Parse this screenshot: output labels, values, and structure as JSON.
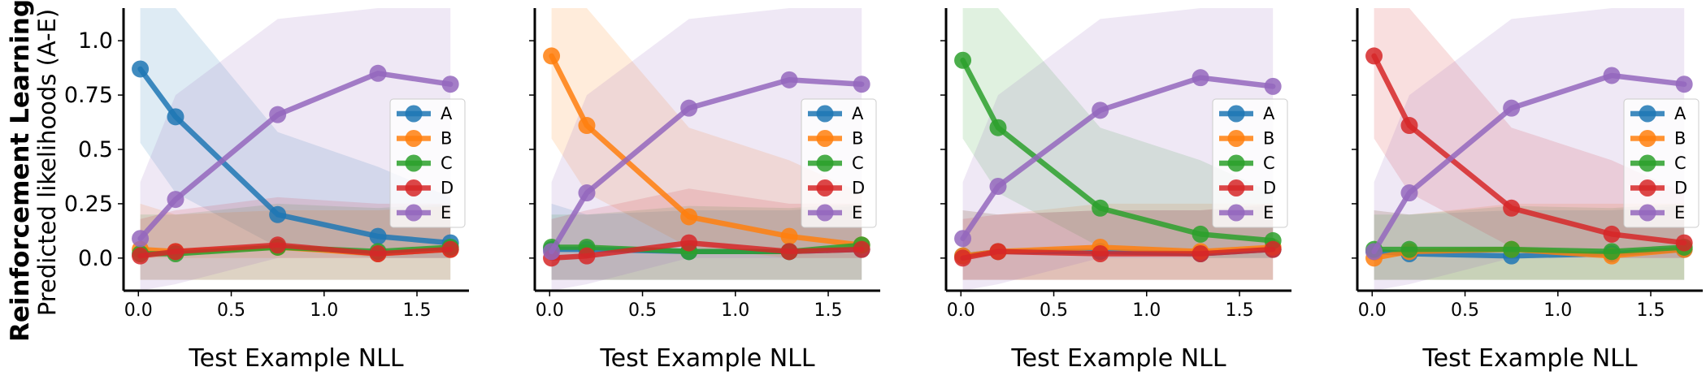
{
  "figure": {
    "row_label": "Reinforcement Learning",
    "ylabel": "Predicted likelihoods (A-E)"
  },
  "colors": {
    "A": "#1f77b4",
    "B": "#ff7f0e",
    "C": "#2ca02c",
    "D": "#d62728",
    "E": "#9467bd"
  },
  "chart_data": [
    {
      "type": "line",
      "xlabel": "Test Example NLL",
      "ylabel": "Predicted likelihoods (A-E)",
      "xlim": [
        -0.08,
        1.78
      ],
      "ylim": [
        -0.15,
        1.15
      ],
      "xticks": [
        "0.0",
        "0.5",
        "1.0",
        "1.5"
      ],
      "yticks": [
        "0.0",
        "0.25",
        "0.5",
        "0.75",
        "1.0"
      ],
      "legend": [
        "A",
        "B",
        "C",
        "D",
        "E"
      ],
      "legend_position": "center-right",
      "x": [
        0.01,
        0.2,
        0.75,
        1.29,
        1.68
      ],
      "series": [
        {
          "name": "A",
          "values": [
            0.87,
            0.65,
            0.2,
            0.1,
            0.07
          ],
          "band_low": [
            0.53,
            0.3,
            0.05,
            0.0,
            0.0
          ],
          "band_high": [
            1.15,
            1.15,
            0.58,
            0.42,
            0.28
          ]
        },
        {
          "name": "B",
          "values": [
            0.04,
            0.03,
            0.05,
            0.02,
            0.04
          ],
          "band_low": [
            0.0,
            0.0,
            0.0,
            0.0,
            0.0
          ],
          "band_high": [
            0.25,
            0.2,
            0.22,
            0.22,
            0.24
          ]
        },
        {
          "name": "C",
          "values": [
            0.02,
            0.02,
            0.05,
            0.03,
            0.05
          ],
          "band_low": [
            -0.1,
            -0.1,
            -0.1,
            -0.1,
            -0.1
          ],
          "band_high": [
            0.2,
            0.2,
            0.25,
            0.23,
            0.25
          ]
        },
        {
          "name": "D",
          "values": [
            0.01,
            0.03,
            0.06,
            0.02,
            0.04
          ],
          "band_low": [
            -0.1,
            -0.1,
            -0.1,
            -0.1,
            -0.1
          ],
          "band_high": [
            0.18,
            0.22,
            0.28,
            0.25,
            0.25
          ]
        },
        {
          "name": "E",
          "values": [
            0.09,
            0.27,
            0.66,
            0.85,
            0.8
          ],
          "band_low": [
            -0.15,
            -0.12,
            0.0,
            0.0,
            0.0
          ],
          "band_high": [
            0.35,
            0.75,
            1.1,
            1.15,
            1.15
          ]
        }
      ]
    },
    {
      "type": "line",
      "xlabel": "Test Example NLL",
      "xlim": [
        -0.08,
        1.78
      ],
      "ylim": [
        -0.15,
        1.15
      ],
      "xticks": [
        "0.0",
        "0.5",
        "1.0",
        "1.5"
      ],
      "yticks": [],
      "legend": [
        "A",
        "B",
        "C",
        "D",
        "E"
      ],
      "legend_position": "center-right",
      "x": [
        0.01,
        0.2,
        0.75,
        1.29,
        1.68
      ],
      "series": [
        {
          "name": "A",
          "values": [
            0.04,
            0.04,
            0.03,
            0.03,
            0.04
          ],
          "band_low": [
            -0.1,
            -0.1,
            -0.1,
            -0.1,
            -0.1
          ],
          "band_high": [
            0.25,
            0.2,
            0.22,
            0.22,
            0.24
          ]
        },
        {
          "name": "B",
          "values": [
            0.93,
            0.61,
            0.19,
            0.1,
            0.06
          ],
          "band_low": [
            0.55,
            0.3,
            0.05,
            0.0,
            0.0
          ],
          "band_high": [
            1.15,
            1.15,
            0.6,
            0.45,
            0.3
          ]
        },
        {
          "name": "C",
          "values": [
            0.05,
            0.05,
            0.03,
            0.03,
            0.06
          ],
          "band_low": [
            -0.1,
            -0.1,
            -0.1,
            -0.1,
            -0.1
          ],
          "band_high": [
            0.2,
            0.2,
            0.24,
            0.23,
            0.25
          ]
        },
        {
          "name": "D",
          "values": [
            0.0,
            0.01,
            0.07,
            0.03,
            0.04
          ],
          "band_low": [
            -0.1,
            -0.1,
            -0.1,
            -0.1,
            -0.1
          ],
          "band_high": [
            0.18,
            0.22,
            0.32,
            0.25,
            0.25
          ]
        },
        {
          "name": "E",
          "values": [
            0.03,
            0.3,
            0.69,
            0.82,
            0.8
          ],
          "band_low": [
            -0.15,
            -0.12,
            0.0,
            0.0,
            0.0
          ],
          "band_high": [
            0.35,
            0.75,
            1.1,
            1.15,
            1.15
          ]
        }
      ]
    },
    {
      "type": "line",
      "xlabel": "Test Example NLL",
      "xlim": [
        -0.08,
        1.78
      ],
      "ylim": [
        -0.15,
        1.15
      ],
      "xticks": [
        "0.0",
        "0.5",
        "1.0",
        "1.5"
      ],
      "yticks": [],
      "legend": [
        "A",
        "B",
        "C",
        "D",
        "E"
      ],
      "legend_position": "center-right",
      "x": [
        0.01,
        0.2,
        0.75,
        1.29,
        1.68
      ],
      "series": [
        {
          "name": "A",
          "values": [
            0.01,
            0.03,
            0.03,
            0.02,
            0.04
          ],
          "band_low": [
            -0.1,
            -0.1,
            -0.1,
            -0.1,
            -0.1
          ],
          "band_high": [
            0.22,
            0.2,
            0.22,
            0.22,
            0.24
          ]
        },
        {
          "name": "B",
          "values": [
            0.01,
            0.03,
            0.05,
            0.03,
            0.05
          ],
          "band_low": [
            -0.1,
            -0.1,
            -0.1,
            -0.1,
            -0.1
          ],
          "band_high": [
            0.22,
            0.2,
            0.25,
            0.25,
            0.25
          ]
        },
        {
          "name": "C",
          "values": [
            0.91,
            0.6,
            0.23,
            0.11,
            0.08
          ],
          "band_low": [
            0.55,
            0.3,
            0.05,
            0.0,
            0.0
          ],
          "band_high": [
            1.15,
            1.15,
            0.6,
            0.45,
            0.3
          ]
        },
        {
          "name": "D",
          "values": [
            0.0,
            0.03,
            0.02,
            0.02,
            0.04
          ],
          "band_low": [
            -0.1,
            -0.1,
            -0.1,
            -0.1,
            -0.1
          ],
          "band_high": [
            0.18,
            0.2,
            0.22,
            0.22,
            0.25
          ]
        },
        {
          "name": "E",
          "values": [
            0.09,
            0.33,
            0.68,
            0.83,
            0.79
          ],
          "band_low": [
            -0.15,
            -0.12,
            0.0,
            0.0,
            0.0
          ],
          "band_high": [
            0.35,
            0.75,
            1.1,
            1.15,
            1.15
          ]
        }
      ]
    },
    {
      "type": "line",
      "xlabel": "Test Example NLL",
      "xlim": [
        -0.08,
        1.78
      ],
      "ylim": [
        -0.15,
        1.15
      ],
      "xticks": [
        "0.0",
        "0.5",
        "1.0",
        "1.5"
      ],
      "yticks": [],
      "legend": [
        "A",
        "B",
        "C",
        "D",
        "E"
      ],
      "legend_position": "center-right",
      "x": [
        0.01,
        0.2,
        0.75,
        1.29,
        1.68
      ],
      "series": [
        {
          "name": "A",
          "values": [
            0.03,
            0.02,
            0.01,
            0.02,
            0.04
          ],
          "band_low": [
            -0.1,
            -0.1,
            -0.1,
            -0.1,
            -0.1
          ],
          "band_high": [
            0.22,
            0.2,
            0.22,
            0.22,
            0.24
          ]
        },
        {
          "name": "B",
          "values": [
            0.0,
            0.03,
            0.04,
            0.01,
            0.04
          ],
          "band_low": [
            -0.1,
            -0.1,
            -0.1,
            -0.1,
            -0.1
          ],
          "band_high": [
            0.22,
            0.2,
            0.25,
            0.25,
            0.25
          ]
        },
        {
          "name": "C",
          "values": [
            0.04,
            0.04,
            0.04,
            0.03,
            0.05
          ],
          "band_low": [
            -0.1,
            -0.1,
            -0.1,
            -0.1,
            -0.1
          ],
          "band_high": [
            0.2,
            0.2,
            0.24,
            0.23,
            0.25
          ]
        },
        {
          "name": "D",
          "values": [
            0.93,
            0.61,
            0.23,
            0.11,
            0.07
          ],
          "band_low": [
            0.55,
            0.3,
            0.05,
            0.0,
            0.0
          ],
          "band_high": [
            1.15,
            1.15,
            0.6,
            0.45,
            0.3
          ]
        },
        {
          "name": "E",
          "values": [
            0.03,
            0.3,
            0.69,
            0.84,
            0.8
          ],
          "band_low": [
            -0.15,
            -0.12,
            0.0,
            0.0,
            0.0
          ],
          "band_high": [
            0.35,
            0.75,
            1.1,
            1.15,
            1.15
          ]
        }
      ]
    }
  ]
}
